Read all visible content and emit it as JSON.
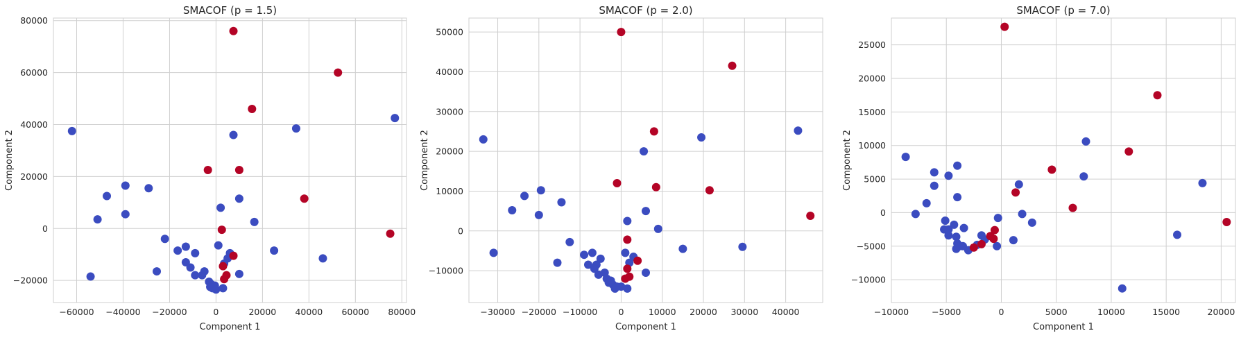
{
  "chart_data": [
    {
      "type": "scatter",
      "title": "SMACOF (p = 1.5)",
      "xlabel": "Component 1",
      "ylabel": "Component 2",
      "xlim": [
        -70000,
        82000
      ],
      "ylim": [
        -28500,
        81000
      ],
      "xticks": [
        -60000,
        -40000,
        -20000,
        0,
        20000,
        40000,
        60000,
        80000
      ],
      "yticks": [
        -20000,
        0,
        20000,
        40000,
        60000,
        80000
      ],
      "grid": true,
      "series": [
        {
          "color": "#3b4cc0",
          "points": [
            [
              -62000,
              37500
            ],
            [
              77000,
              42500
            ],
            [
              34500,
              38500
            ],
            [
              7500,
              36000
            ],
            [
              -39000,
              16500
            ],
            [
              -47000,
              12500
            ],
            [
              -29000,
              15500
            ],
            [
              -51000,
              3500
            ],
            [
              -39000,
              5500
            ],
            [
              10000,
              11500
            ],
            [
              2000,
              8000
            ],
            [
              16500,
              2500
            ],
            [
              -22000,
              -4000
            ],
            [
              25000,
              -8500
            ],
            [
              46000,
              -11500
            ],
            [
              -16500,
              -8500
            ],
            [
              -13000,
              -7000
            ],
            [
              -9000,
              -9500
            ],
            [
              -13000,
              -13000
            ],
            [
              -11000,
              -15000
            ],
            [
              -9000,
              -18000
            ],
            [
              -5000,
              -16500
            ],
            [
              -6000,
              -18000
            ],
            [
              -3000,
              -20500
            ],
            [
              -2000,
              -21500
            ],
            [
              -1500,
              -23000
            ],
            [
              -500,
              -22000
            ],
            [
              -2500,
              -22500
            ],
            [
              0,
              -23500
            ],
            [
              1000,
              -6500
            ],
            [
              3500,
              -13500
            ],
            [
              5000,
              -11500
            ],
            [
              6000,
              -9500
            ],
            [
              10000,
              -17500
            ],
            [
              -25500,
              -16500
            ],
            [
              -54000,
              -18500
            ],
            [
              3000,
              -23000
            ]
          ]
        },
        {
          "color": "#b40426",
          "points": [
            [
              7500,
              76000
            ],
            [
              52500,
              60000
            ],
            [
              15500,
              46000
            ],
            [
              -3500,
              22500
            ],
            [
              10000,
              22500
            ],
            [
              38000,
              11500
            ],
            [
              75000,
              -2000
            ],
            [
              2500,
              -500
            ],
            [
              7500,
              -10500
            ],
            [
              3000,
              -14500
            ],
            [
              4500,
              -18000
            ],
            [
              3500,
              -19500
            ]
          ]
        }
      ]
    },
    {
      "type": "scatter",
      "title": "SMACOF (p = 2.0)",
      "xlabel": "Component 1",
      "ylabel": "Component 2",
      "xlim": [
        -37000,
        49000
      ],
      "ylim": [
        -18000,
        53500
      ],
      "xticks": [
        -30000,
        -20000,
        -10000,
        0,
        10000,
        20000,
        30000,
        40000
      ],
      "yticks": [
        -10000,
        0,
        10000,
        20000,
        30000,
        40000,
        50000
      ],
      "grid": true,
      "series": [
        {
          "color": "#3b4cc0",
          "points": [
            [
              -33500,
              23000
            ],
            [
              -31000,
              -5500
            ],
            [
              -26500,
              5200
            ],
            [
              -23500,
              8800
            ],
            [
              -20000,
              4000
            ],
            [
              -19500,
              10200
            ],
            [
              -14500,
              7200
            ],
            [
              -15500,
              -8000
            ],
            [
              -12500,
              -2800
            ],
            [
              -9000,
              -6000
            ],
            [
              -7000,
              -5500
            ],
            [
              -6000,
              -8500
            ],
            [
              -5000,
              -7000
            ],
            [
              -8000,
              -8500
            ],
            [
              -6500,
              -9500
            ],
            [
              -5500,
              -11000
            ],
            [
              -3500,
              -12000
            ],
            [
              -2500,
              -12500
            ],
            [
              -2000,
              -13500
            ],
            [
              -1000,
              -14000
            ],
            [
              -1500,
              -14500
            ],
            [
              -4000,
              -10500
            ],
            [
              -3000,
              -13000
            ],
            [
              0,
              -14000
            ],
            [
              1500,
              -14500
            ],
            [
              1000,
              -5500
            ],
            [
              1500,
              2500
            ],
            [
              2000,
              -8000
            ],
            [
              3000,
              -6500
            ],
            [
              5500,
              20000
            ],
            [
              6000,
              5000
            ],
            [
              6000,
              -10500
            ],
            [
              9000,
              500
            ],
            [
              15000,
              -4500
            ],
            [
              19500,
              23500
            ],
            [
              29500,
              -4000
            ],
            [
              43000,
              25200
            ]
          ]
        },
        {
          "color": "#b40426",
          "points": [
            [
              0,
              50000
            ],
            [
              27000,
              41500
            ],
            [
              8000,
              25000
            ],
            [
              -1000,
              12000
            ],
            [
              8500,
              11000
            ],
            [
              21500,
              10200
            ],
            [
              46000,
              3800
            ],
            [
              1500,
              -2200
            ],
            [
              4000,
              -7500
            ],
            [
              1500,
              -9500
            ],
            [
              2000,
              -11500
            ],
            [
              1000,
              -12000
            ]
          ]
        }
      ]
    },
    {
      "type": "scatter",
      "title": "SMACOF (p = 7.0)",
      "xlabel": "Component 1",
      "ylabel": "Component 2",
      "xlim": [
        -10000,
        21300
      ],
      "ylim": [
        -13400,
        29000
      ],
      "xticks": [
        -10000,
        -5000,
        0,
        5000,
        10000,
        15000,
        20000
      ],
      "yticks": [
        -10000,
        -5000,
        0,
        5000,
        10000,
        15000,
        20000,
        25000
      ],
      "grid": true,
      "series": [
        {
          "color": "#3b4cc0",
          "points": [
            [
              -8700,
              8300
            ],
            [
              -7800,
              -200
            ],
            [
              -6800,
              1400
            ],
            [
              -6100,
              6000
            ],
            [
              -6100,
              4000
            ],
            [
              -4800,
              5500
            ],
            [
              -4000,
              7000
            ],
            [
              -4000,
              2300
            ],
            [
              -5100,
              -1200
            ],
            [
              -5200,
              -2500
            ],
            [
              -4800,
              -3400
            ],
            [
              -4100,
              -3600
            ],
            [
              -4000,
              -4600
            ],
            [
              -3800,
              -5000
            ],
            [
              -4100,
              -5400
            ],
            [
              -3500,
              -5000
            ],
            [
              -3000,
              -5600
            ],
            [
              -2200,
              -4800
            ],
            [
              -1800,
              -3400
            ],
            [
              -3400,
              -2300
            ],
            [
              -4300,
              -1800
            ],
            [
              -4800,
              -2500
            ],
            [
              -1500,
              -4000
            ],
            [
              -300,
              -800
            ],
            [
              -400,
              -5000
            ],
            [
              1100,
              -4100
            ],
            [
              1600,
              4200
            ],
            [
              1900,
              -200
            ],
            [
              2800,
              -1500
            ],
            [
              7500,
              5400
            ],
            [
              7700,
              10600
            ],
            [
              11000,
              -11300
            ],
            [
              16000,
              -3300
            ],
            [
              18300,
              4400
            ]
          ]
        },
        {
          "color": "#b40426",
          "points": [
            [
              300,
              27700
            ],
            [
              14200,
              17500
            ],
            [
              11600,
              9100
            ],
            [
              4600,
              6400
            ],
            [
              1300,
              3000
            ],
            [
              6500,
              700
            ],
            [
              20500,
              -1400
            ],
            [
              -600,
              -2600
            ],
            [
              -1000,
              -3500
            ],
            [
              -700,
              -3900
            ],
            [
              -2500,
              -5200
            ],
            [
              -1800,
              -4700
            ]
          ]
        }
      ]
    }
  ]
}
